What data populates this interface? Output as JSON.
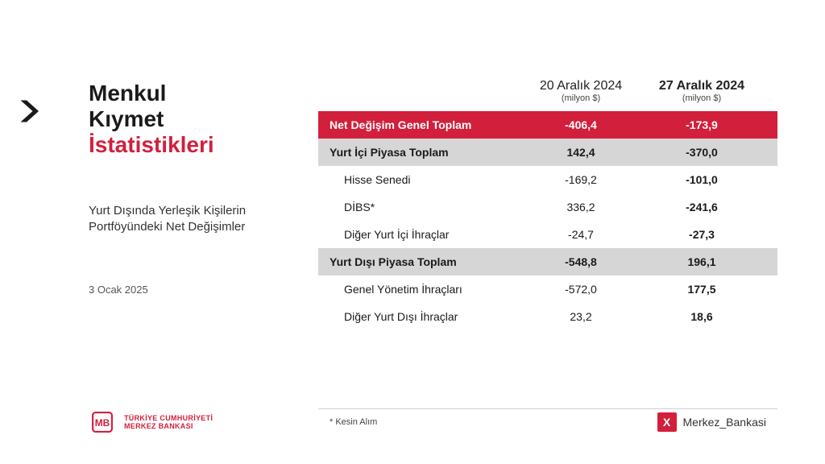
{
  "colors": {
    "brand_red": "#d21f3c",
    "grey_row": "#d6d6d6",
    "text_dark": "#1a1a1a",
    "background": "#ffffff"
  },
  "left": {
    "title_line1": "Menkul",
    "title_line2": "Kıymet",
    "title_line3": "İstatistikleri",
    "subtitle": "Yurt Dışında Yerleşik Kişilerin Portföyündeki Net Değişimler",
    "date": "3 Ocak 2025"
  },
  "logo": {
    "line1": "TÜRKİYE CUMHURİYETİ",
    "line2": "MERKEZ BANKASI"
  },
  "table": {
    "header": {
      "col2_date": "20 Aralık 2024",
      "col2_unit": "(milyon $)",
      "col3_date": "27 Aralık 2024",
      "col3_unit": "(milyon $)"
    },
    "rows": [
      {
        "style": "red",
        "label": "Net Değişim Genel Toplam",
        "v1": "-406,4",
        "v2": "-173,9"
      },
      {
        "style": "grey",
        "label": "Yurt İçi Piyasa Toplam",
        "v1": "142,4",
        "v2": "-370,0"
      },
      {
        "style": "plain",
        "label": "Hisse Senedi",
        "v1": "-169,2",
        "v2": "-101,0"
      },
      {
        "style": "plain",
        "label": "DİBS*",
        "v1": "336,2",
        "v2": "-241,6"
      },
      {
        "style": "plain",
        "label": "Diğer Yurt İçi İhraçlar",
        "v1": "-24,7",
        "v2": "-27,3"
      },
      {
        "style": "grey",
        "label": "Yurt Dışı Piyasa Toplam",
        "v1": "-548,8",
        "v2": "196,1"
      },
      {
        "style": "plain",
        "label": "Genel Yönetim İhraçları",
        "v1": "-572,0",
        "v2": "177,5"
      },
      {
        "style": "plain",
        "label": "Diğer Yurt Dışı İhraçlar",
        "v1": "23,2",
        "v2": "18,6"
      }
    ],
    "footnote": "* Kesin Alım"
  },
  "social": {
    "handle": "Merkez_Bankasi",
    "badge_glyph": "X"
  }
}
